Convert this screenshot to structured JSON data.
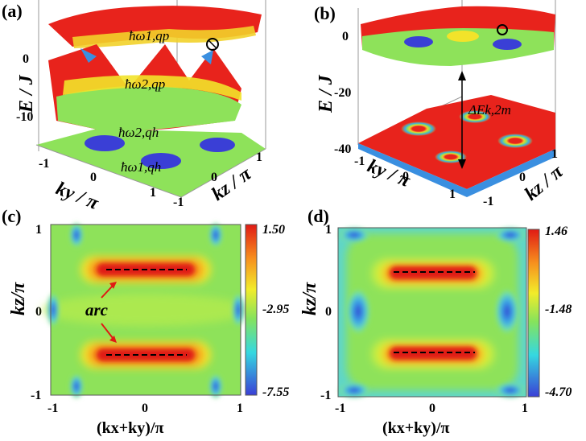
{
  "panels": {
    "a": {
      "label": "(a)",
      "zlabel": "E / J",
      "xlabel": "ky / π",
      "ylabel": "kz / π",
      "zticks": [
        "0",
        "-10"
      ],
      "xticks": [
        "-1",
        "0",
        "1"
      ],
      "yticks": [
        "-1",
        "0",
        "1"
      ],
      "band_labels": [
        "ħω1,qp",
        "ħω2,qp",
        "ħω2,qh",
        "ħω1,qh"
      ]
    },
    "b": {
      "label": "(b)",
      "zlabel": "E / J",
      "xlabel": "ky / π",
      "ylabel": "kz / π",
      "zticks": [
        "0",
        "-20",
        "-40"
      ],
      "xticks": [
        "-1",
        "0",
        "1"
      ],
      "yticks": [
        "-1",
        "0",
        "1"
      ],
      "gap_label": "ΔEk,2m"
    },
    "c": {
      "label": "(c)",
      "xlabel": "(kx+ky)/π",
      "ylabel": "kz/π",
      "xticks": [
        "-1",
        "0",
        "1"
      ],
      "yticks": [
        "1",
        "0",
        "-1"
      ],
      "colorbar": [
        "1.50",
        "-2.95",
        "-7.55"
      ],
      "annotation": "arc"
    },
    "d": {
      "label": "(d)",
      "xlabel": "(kx+ky)/π",
      "ylabel": "kz/π",
      "xticks": [
        "-1",
        "0",
        "1"
      ],
      "yticks": [
        "1",
        "0",
        "-1"
      ],
      "colorbar": [
        "1.46",
        "-1.48",
        "-4.70"
      ]
    }
  },
  "colors": {
    "jet_low": "#3a4ed8",
    "jet_mid": "#7fe05a",
    "jet_high": "#e8231c",
    "background": "#ffffff"
  }
}
